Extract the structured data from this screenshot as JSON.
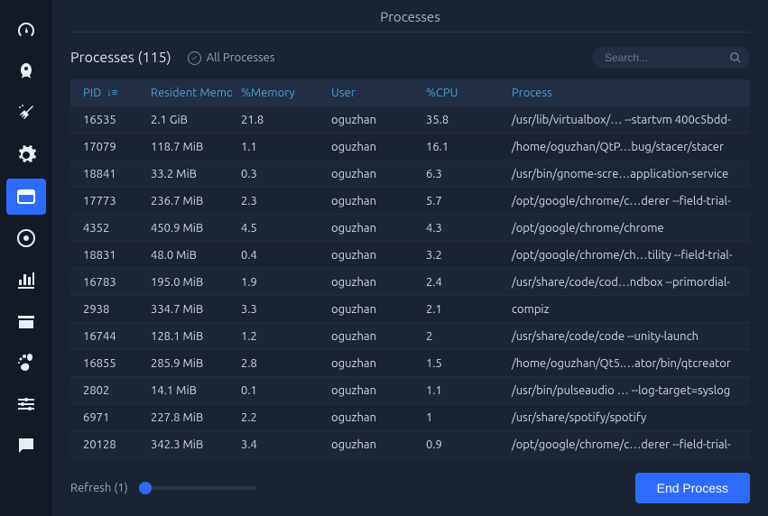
{
  "colors": {
    "bg": "#1a2332",
    "sidebar_bg": "#121a26",
    "accent": "#2d6bff",
    "header_text": "#4aa3d9",
    "row_alt": "#1c2636",
    "border": "#222d3f"
  },
  "page": {
    "title": "Processes"
  },
  "subheader": {
    "count_label": "Processes (115)",
    "all_label": "All Processes",
    "all_checked": true
  },
  "search": {
    "placeholder": "Search..."
  },
  "columns": {
    "pid": "PID",
    "rmem": "Resident Memory",
    "pmem": "%Memory",
    "user": "User",
    "pcpu": "%CPU",
    "proc": "Process"
  },
  "sort": {
    "column": "pid",
    "dir": "desc"
  },
  "rows": [
    {
      "pid": "16535",
      "rmem": "2.1 GiB",
      "pmem": "21.8",
      "user": "oguzhan",
      "pcpu": "35.8",
      "proc": "/usr/lib/virtualbox/… --startvm 400c5bdd-"
    },
    {
      "pid": "17079",
      "rmem": "118.7 MiB",
      "pmem": "1.1",
      "user": "oguzhan",
      "pcpu": "16.1",
      "proc": "/home/oguzhan/QtP…bug/stacer/stacer"
    },
    {
      "pid": "18841",
      "rmem": "33.2 MiB",
      "pmem": "0.3",
      "user": "oguzhan",
      "pcpu": "6.3",
      "proc": "/usr/bin/gnome-scre…application-service"
    },
    {
      "pid": "17773",
      "rmem": "236.7 MiB",
      "pmem": "2.3",
      "user": "oguzhan",
      "pcpu": "5.7",
      "proc": "/opt/google/chrome/c…derer --field-trial-"
    },
    {
      "pid": "4352",
      "rmem": "450.9 MiB",
      "pmem": "4.5",
      "user": "oguzhan",
      "pcpu": "4.3",
      "proc": "/opt/google/chrome/chrome"
    },
    {
      "pid": "18831",
      "rmem": "48.0 MiB",
      "pmem": "0.4",
      "user": "oguzhan",
      "pcpu": "3.2",
      "proc": "/opt/google/chrome/ch…tility --field-trial-"
    },
    {
      "pid": "16783",
      "rmem": "195.0 MiB",
      "pmem": "1.9",
      "user": "oguzhan",
      "pcpu": "2.4",
      "proc": "/usr/share/code/cod…ndbox --primordial-"
    },
    {
      "pid": "2938",
      "rmem": "334.7 MiB",
      "pmem": "3.3",
      "user": "oguzhan",
      "pcpu": "2.1",
      "proc": "compiz"
    },
    {
      "pid": "16744",
      "rmem": "128.1 MiB",
      "pmem": "1.2",
      "user": "oguzhan",
      "pcpu": "2",
      "proc": "/usr/share/code/code --unity-launch"
    },
    {
      "pid": "16855",
      "rmem": "285.9 MiB",
      "pmem": "2.8",
      "user": "oguzhan",
      "pcpu": "1.5",
      "proc": "/home/oguzhan/Qt5.…ator/bin/qtcreator"
    },
    {
      "pid": "2802",
      "rmem": "14.1 MiB",
      "pmem": "0.1",
      "user": "oguzhan",
      "pcpu": "1.1",
      "proc": "/usr/bin/pulseaudio … --log-target=syslog"
    },
    {
      "pid": "6971",
      "rmem": "227.8 MiB",
      "pmem": "2.2",
      "user": "oguzhan",
      "pcpu": "1",
      "proc": "/usr/share/spotify/spotify"
    },
    {
      "pid": "20128",
      "rmem": "342.3 MiB",
      "pmem": "3.4",
      "user": "oguzhan",
      "pcpu": "0.9",
      "proc": "/opt/google/chrome/c…derer --field-trial-"
    }
  ],
  "footer": {
    "refresh_label": "Refresh (1)",
    "end_button": "End Process"
  },
  "sidebar": [
    {
      "name": "dashboard-icon"
    },
    {
      "name": "startup-icon"
    },
    {
      "name": "cleaner-icon"
    },
    {
      "name": "services-icon"
    },
    {
      "name": "processes-icon",
      "active": true
    },
    {
      "name": "uninstaller-icon"
    },
    {
      "name": "resources-icon"
    },
    {
      "name": "packages-icon"
    },
    {
      "name": "gnome-icon"
    },
    {
      "name": "settings-icon"
    },
    {
      "name": "feedback-icon"
    }
  ]
}
